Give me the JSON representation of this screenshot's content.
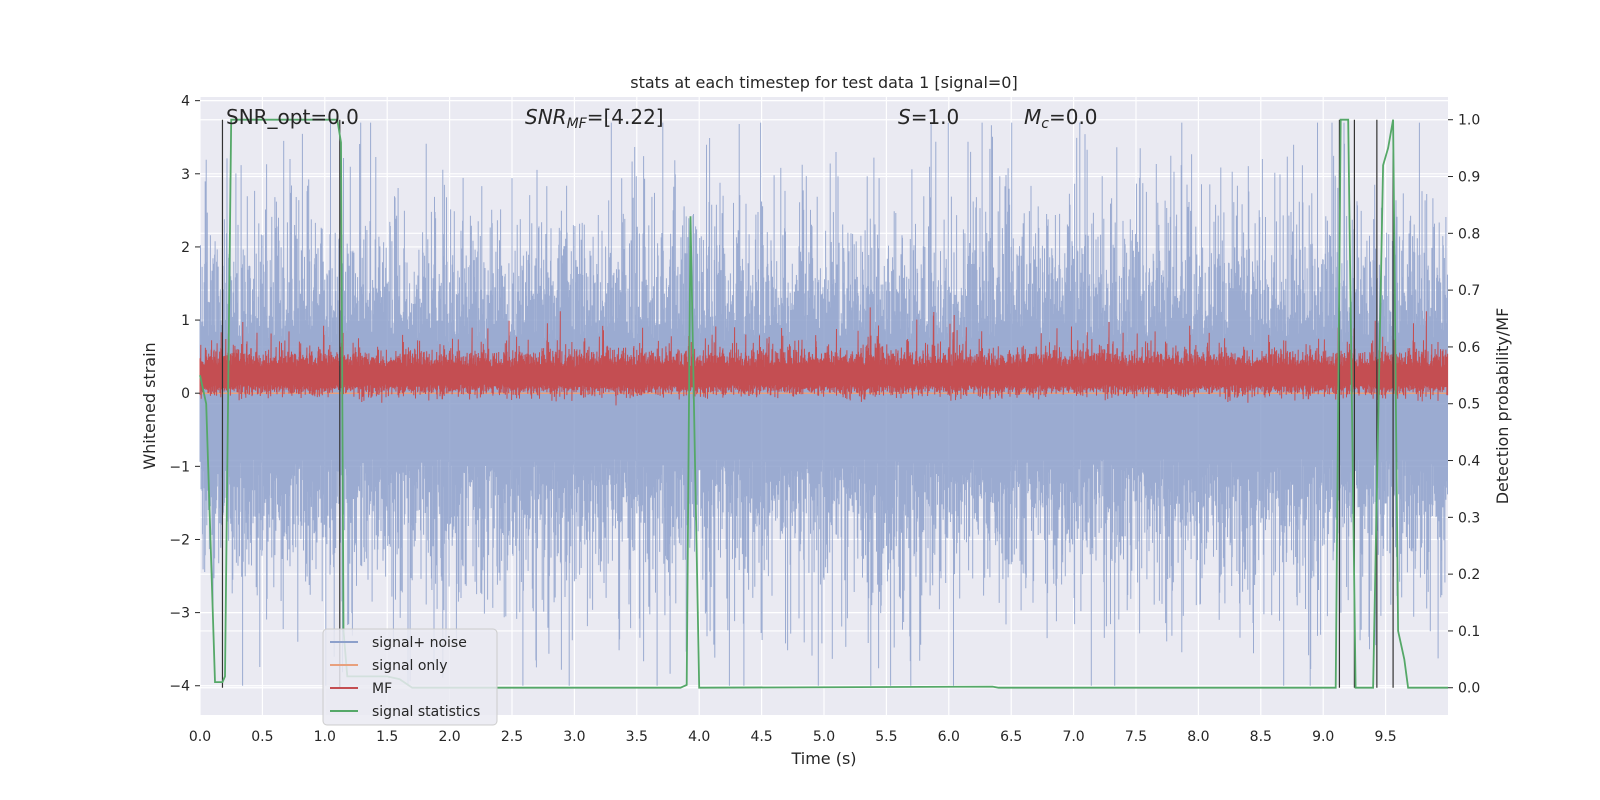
{
  "chart_data": {
    "type": "line",
    "title": "stats at each timestep for test data 1 [signal=0]",
    "xlabel": "Time (s)",
    "ylabel": "Whitened strain",
    "y2label": "Detection probability/MF",
    "xlim": [
      0.0,
      10.0
    ],
    "ylim": [
      -4.4,
      4.05
    ],
    "y2lim": [
      -0.048,
      1.04
    ],
    "x_ticks": [
      "0.0",
      "0.5",
      "1.0",
      "1.5",
      "2.0",
      "2.5",
      "3.0",
      "3.5",
      "4.0",
      "4.5",
      "5.0",
      "5.5",
      "6.0",
      "6.5",
      "7.0",
      "7.5",
      "8.0",
      "8.5",
      "9.0",
      "9.5"
    ],
    "x_tick_values": [
      0,
      0.5,
      1,
      1.5,
      2,
      2.5,
      3,
      3.5,
      4,
      4.5,
      5,
      5.5,
      6,
      6.5,
      7,
      7.5,
      8,
      8.5,
      9,
      9.5
    ],
    "y_ticks": [
      "−4",
      "−3",
      "−2",
      "−1",
      "0",
      "1",
      "2",
      "3",
      "4"
    ],
    "y_tick_values": [
      -4,
      -3,
      -2,
      -1,
      0,
      1,
      2,
      3,
      4
    ],
    "y2_ticks": [
      "0.0",
      "0.1",
      "0.2",
      "0.3",
      "0.4",
      "0.5",
      "0.6",
      "0.7",
      "0.8",
      "0.9",
      "1.0"
    ],
    "y2_tick_values": [
      0,
      0.1,
      0.2,
      0.3,
      0.4,
      0.5,
      0.6,
      0.7,
      0.8,
      0.9,
      1.0
    ],
    "grid": true,
    "legend_position": "lower-left",
    "annotations": {
      "snr_opt": "SNR_opt=0.0",
      "snr_mf_prefix": "SNR",
      "snr_mf_sub": "MF",
      "snr_mf_value": "=[4.22]",
      "s_label": "S",
      "s_value": "=1.0",
      "mc_label": "M",
      "mc_sub": "c",
      "mc_value": "=0.0"
    },
    "series": [
      {
        "name": "signal+ noise",
        "color": "#8da0cb",
        "axis": "left",
        "description_values": "white noise, approx. range [-4.0, 3.7]"
      },
      {
        "name": "signal only",
        "color": "#e8a07d",
        "axis": "left",
        "x": [
          0.0,
          10.0
        ],
        "y": [
          0.0,
          0.0
        ]
      },
      {
        "name": "MF",
        "color": "#c44e52",
        "axis": "left",
        "description_values": "noise band approx. 0.0 to 0.6, peaks up to ~1.0"
      },
      {
        "name": "signal statistics",
        "color": "#55a868",
        "axis": "right",
        "x": [
          0.0,
          0.05,
          0.12,
          0.18,
          0.2,
          0.25,
          0.3,
          1.0,
          1.1,
          1.13,
          1.15,
          1.18,
          1.5,
          1.6,
          1.7,
          3.85,
          3.9,
          3.93,
          3.97,
          4.0,
          6.35,
          6.4,
          9.1,
          9.14,
          9.2,
          9.26,
          9.3,
          9.4,
          9.48,
          9.52,
          9.56,
          9.6,
          9.65,
          9.68,
          9.75,
          10.0
        ],
        "y": [
          0.55,
          0.5,
          0.01,
          0.01,
          0.02,
          1.0,
          1.0,
          1.0,
          1.0,
          0.96,
          0.1,
          0.02,
          0.02,
          0.015,
          0.0,
          0.0,
          0.005,
          0.83,
          0.35,
          0.0,
          0.002,
          0.0,
          0.0,
          1.0,
          1.0,
          0.0,
          0.0,
          0.0,
          0.92,
          0.95,
          1.0,
          0.1,
          0.05,
          0.0,
          0.0,
          0.0
        ]
      }
    ],
    "vlines": [
      0.18,
      1.12,
      9.13,
      9.25,
      9.43,
      9.56
    ]
  }
}
